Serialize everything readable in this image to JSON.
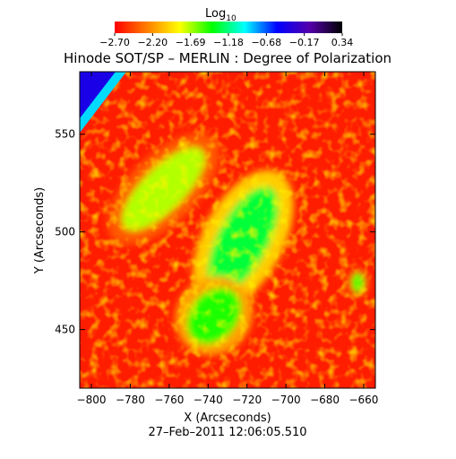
{
  "chart_data": {
    "type": "heatmap",
    "title": "Hinode SOT/SP – MERLIN : Degree of Polarization",
    "xlabel": "X (Arcseconds)",
    "ylabel": "Y (Arcseconds)",
    "timestamp": "27–Feb–2011 12:06:05.510",
    "xlim": [
      -806,
      -654
    ],
    "ylim": [
      420,
      582
    ],
    "x_ticks": [
      "-800",
      "-780",
      "-760",
      "-740",
      "-720",
      "-700",
      "-680",
      "-660"
    ],
    "x_tick_values": [
      -800,
      -780,
      -760,
      -740,
      -720,
      -700,
      -680,
      -660
    ],
    "y_ticks": [
      "450",
      "500",
      "550"
    ],
    "y_tick_values": [
      450,
      500,
      550
    ],
    "colorbar": {
      "title": "Log",
      "title_subscript": "10",
      "tick_labels": [
        "−2.70",
        "−2.20",
        "−1.69",
        "−1.18",
        "−0.68",
        "−0.17",
        "0.34"
      ],
      "range": [
        -2.7,
        0.34
      ],
      "colors": [
        "#ff0000",
        "#ff7f00",
        "#ffff00",
        "#00ff00",
        "#00ffff",
        "#0000ff",
        "#5500aa",
        "#000000"
      ]
    },
    "background_level": -2.6,
    "features": [
      {
        "name": "central-plage",
        "cx": -722,
        "cy": 496,
        "level": -1.3
      },
      {
        "name": "lower-plage",
        "cx": -737,
        "cy": 457,
        "level": -1.45
      },
      {
        "name": "upper-left-plage",
        "cx": -763,
        "cy": 522,
        "level": -1.7
      },
      {
        "name": "right-spot",
        "cx": -663,
        "cy": 474,
        "level": -1.4
      },
      {
        "name": "corner-offlimb",
        "cx": -801,
        "cy": 575,
        "level": -0.4
      }
    ]
  }
}
